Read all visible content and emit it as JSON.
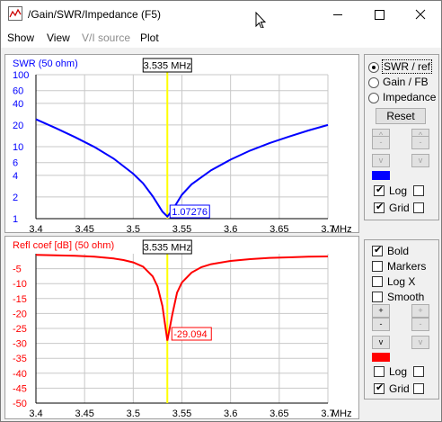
{
  "window": {
    "title": "/Gain/SWR/Impedance (F5)",
    "minimize_icon": "minimize-icon",
    "maximize_icon": "maximize-icon",
    "close_icon": "close-icon",
    "app_icon": "chart-app-icon"
  },
  "menu": [
    {
      "label": "Show",
      "enabled": true
    },
    {
      "label": "View",
      "enabled": true
    },
    {
      "label": "V/I source",
      "enabled": false
    },
    {
      "label": "Plot",
      "enabled": true
    }
  ],
  "top_controls": {
    "options": [
      "SWR / ref",
      "Gain / FB",
      "Impedance"
    ],
    "selected": "SWR / ref",
    "reset_label": "Reset",
    "up_label": "^",
    "minus_label": "-",
    "down_label": "v",
    "series_color": "#0000ff",
    "log_label": "Log",
    "log_checked": true,
    "grid_label": "Grid",
    "grid_checked": true,
    "grid2_checked": false,
    "log2_checked": false
  },
  "bottom_controls": {
    "bold_label": "Bold",
    "bold_checked": true,
    "markers_label": "Markers",
    "markers_checked": false,
    "logx_label": "Log X",
    "logx_checked": false,
    "smooth_label": "Smooth",
    "smooth_checked": false,
    "up_label": "+",
    "minus_label": "-",
    "down_label": "v",
    "series_color": "#ff0000",
    "log_label": "Log",
    "log_checked": false,
    "log2_checked": false,
    "grid_label": "Grid",
    "grid_checked": true,
    "grid2_checked": false
  },
  "chart_data": [
    {
      "type": "line",
      "title": "SWR (50 ohm)",
      "x_unit": "MHz",
      "xlim": [
        3.4,
        3.7
      ],
      "x_ticks": [
        "3.4",
        "3.45",
        "3.5",
        "3.55",
        "3.6",
        "3.65",
        "3.7"
      ],
      "y_scale": "log",
      "ylim": [
        1,
        100
      ],
      "y_ticks": [
        "100",
        "60",
        "40",
        "20",
        "10",
        "6",
        "4",
        "2",
        "1"
      ],
      "cursor_label": "3.535 MHz",
      "marker_label": "1.07276",
      "series_color": "#0000ff",
      "series": [
        {
          "name": "SWR (50 ohm)",
          "x": [
            3.4,
            3.42,
            3.44,
            3.46,
            3.48,
            3.5,
            3.51,
            3.52,
            3.53,
            3.535,
            3.54,
            3.55,
            3.56,
            3.58,
            3.6,
            3.62,
            3.64,
            3.66,
            3.68,
            3.7
          ],
          "y": [
            24,
            18.2,
            13.6,
            9.9,
            6.8,
            4.2,
            3.1,
            2.05,
            1.25,
            1.07,
            1.3,
            2.15,
            3.0,
            4.7,
            6.6,
            8.8,
            11.2,
            13.8,
            16.8,
            20
          ]
        }
      ]
    },
    {
      "type": "line",
      "title": "Refl coef [dB] (50 ohm)",
      "x_unit": "MHz",
      "xlim": [
        3.4,
        3.7
      ],
      "x_ticks": [
        "3.4",
        "3.45",
        "3.5",
        "3.55",
        "3.6",
        "3.65",
        "3.7"
      ],
      "ylim": [
        -50,
        0
      ],
      "y_ticks": [
        "-5",
        "-10",
        "-15",
        "-20",
        "-25",
        "-30",
        "-35",
        "-40",
        "-45",
        "-50"
      ],
      "cursor_label": "3.535 MHz",
      "marker_label": "-29.094",
      "series_color": "#ff0000",
      "series": [
        {
          "name": "Refl coef [dB] (50 ohm)",
          "x": [
            3.4,
            3.42,
            3.44,
            3.46,
            3.48,
            3.49,
            3.5,
            3.51,
            3.52,
            3.525,
            3.53,
            3.535,
            3.54,
            3.545,
            3.55,
            3.56,
            3.57,
            3.58,
            3.6,
            3.62,
            3.64,
            3.66,
            3.68,
            3.7
          ],
          "y": [
            -0.4,
            -0.5,
            -0.7,
            -1.0,
            -1.6,
            -2.1,
            -2.9,
            -4.3,
            -7.6,
            -11,
            -17.5,
            -29.1,
            -20.5,
            -13,
            -9.6,
            -6.3,
            -4.5,
            -3.5,
            -2.4,
            -1.8,
            -1.4,
            -1.2,
            -1.0,
            -0.9
          ]
        }
      ]
    }
  ]
}
